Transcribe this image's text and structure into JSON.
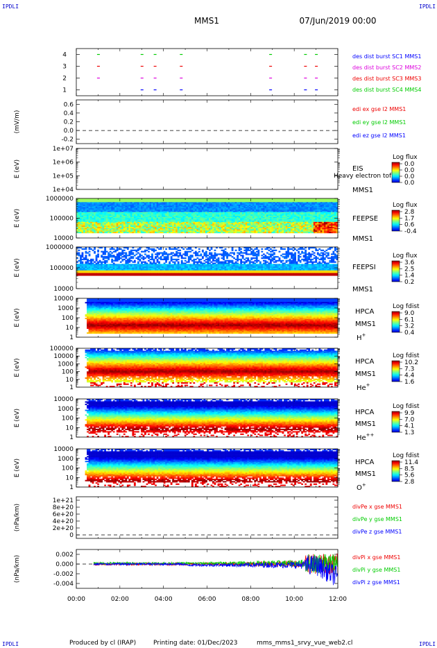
{
  "header": {
    "logo": "IPDLI",
    "spacecraft": "MMS1",
    "datetime": "07/Jun/2019 00:00"
  },
  "footer": {
    "produced_by": "Produced by cl (IRAP)",
    "printing_date": "Printing date: 01/Dec/2023",
    "filename": "mms_mms1_srvy_vue_web2.cl"
  },
  "time_axis": {
    "ticks": [
      "00:00",
      "02:00",
      "04:00",
      "06:00",
      "08:00",
      "10:00",
      "12:00"
    ],
    "range_hours": [
      0,
      12
    ]
  },
  "chart_data": [
    {
      "type": "scatter",
      "id": "burst",
      "ylabel": "",
      "yticks": [
        "1",
        "2",
        "3",
        "4"
      ],
      "ylim": [
        0.5,
        4.5
      ],
      "series": [
        {
          "name": "des dist burst SC1 MMS1",
          "color": "#0000ff",
          "level": 1,
          "times": [
            3.0,
            3.6,
            4.8,
            8.9,
            10.5,
            11.0
          ]
        },
        {
          "name": "des dist burst SC2 MMS2",
          "color": "#dd00dd",
          "level": 2,
          "times": [
            1.0,
            3.0,
            3.6,
            4.8,
            8.9,
            10.5,
            11.0
          ]
        },
        {
          "name": "des dist burst SC3 MMS3",
          "color": "#ee0000",
          "level": 3,
          "times": [
            1.0,
            3.0,
            3.6,
            4.8,
            8.9,
            10.5,
            11.0
          ]
        },
        {
          "name": "des dist burst SC4 MMS4",
          "color": "#00cc00",
          "level": 4,
          "times": [
            1.0,
            3.0,
            3.6,
            4.8,
            8.9,
            10.5,
            11.0
          ]
        }
      ]
    },
    {
      "type": "line",
      "id": "edi",
      "ylabel": "(mV/m)",
      "yticks": [
        "0.6",
        "0.4",
        "0.2",
        "0.0",
        "-0.2"
      ],
      "ytick_values": [
        0.6,
        0.4,
        0.2,
        0.0,
        -0.2
      ],
      "ylim": [
        -0.3,
        0.7
      ],
      "zero_line": true,
      "legend": [
        {
          "name": "edi ex gse l2 MMS1",
          "color": "#ee0000"
        },
        {
          "name": "edi ey gse l2 MMS1",
          "color": "#00cc00"
        },
        {
          "name": "edi ez gse l2 MMS1",
          "color": "#0000ff"
        }
      ]
    },
    {
      "type": "heatmap",
      "id": "eis",
      "ylabel": "E (eV)",
      "yticks": [
        "1e+07",
        "1e+06",
        "1e+05",
        "1e+04"
      ],
      "log_range": [
        4,
        7
      ],
      "label_lines": [
        "EIS",
        "MMS1"
      ],
      "overlay_text": "Heavy electron tof",
      "colorbar_title": "Log flux",
      "colorbar_ticks": [
        "0.0",
        "0.0",
        "0.0",
        "0.0"
      ],
      "data_present": false
    },
    {
      "type": "heatmap",
      "id": "feepse",
      "ylabel": "E (eV)",
      "yticks": [
        "1000000",
        "100000",
        "10000"
      ],
      "log_range": [
        4,
        6
      ],
      "label_lines": [
        "FEEPSE",
        "MMS1"
      ],
      "colorbar_title": "Log flux",
      "colorbar_ticks": [
        "2.8",
        "1.7",
        "0.6",
        "-0.4"
      ],
      "data_present": true
    },
    {
      "type": "heatmap",
      "id": "feepsi",
      "ylabel": "E (eV)",
      "yticks": [
        "1000000",
        "100000",
        "10000"
      ],
      "log_range": [
        4,
        6
      ],
      "label_lines": [
        "FEEPSI",
        "MMS1"
      ],
      "colorbar_title": "Log flux",
      "colorbar_ticks": [
        "3.6",
        "2.5",
        "1.4",
        "0.2"
      ],
      "data_present": true
    },
    {
      "type": "heatmap",
      "id": "hpca_h",
      "ylabel": "E (eV)",
      "yticks": [
        "10000",
        "1000",
        "100",
        "10",
        "1"
      ],
      "log_range": [
        0,
        4.3
      ],
      "label_lines": [
        "HPCA",
        "MMS1"
      ],
      "species": "H",
      "species_sup": "+",
      "colorbar_title": "Log fdist",
      "colorbar_ticks": [
        "9.0",
        "6.1",
        "3.2",
        "0.4"
      ],
      "data_present": true
    },
    {
      "type": "heatmap",
      "id": "hpca_he",
      "ylabel": "E (eV)",
      "yticks": [
        "100000",
        "10000",
        "1000",
        "100",
        "10",
        "1"
      ],
      "log_range": [
        0,
        5
      ],
      "label_lines": [
        "HPCA",
        "MMS1"
      ],
      "species": "He",
      "species_sup": "+",
      "colorbar_title": "Log fdist",
      "colorbar_ticks": [
        "10.2",
        "7.3",
        "4.4",
        "1.6"
      ],
      "data_present": true
    },
    {
      "type": "heatmap",
      "id": "hpca_hepp",
      "ylabel": "E (eV)",
      "yticks": [
        "10000",
        "1000",
        "100",
        "10",
        "1"
      ],
      "log_range": [
        0,
        4.3
      ],
      "label_lines": [
        "HPCA",
        "MMS1"
      ],
      "species": "He",
      "species_sup": "++",
      "colorbar_title": "Log fdist",
      "colorbar_ticks": [
        "9.9",
        "7.0",
        "4.1",
        "1.3"
      ],
      "data_present": true
    },
    {
      "type": "heatmap",
      "id": "hpca_o",
      "ylabel": "E (eV)",
      "yticks": [
        "10000",
        "1000",
        "100",
        "10",
        "1"
      ],
      "log_range": [
        0,
        4.3
      ],
      "label_lines": [
        "HPCA",
        "MMS1"
      ],
      "species": "O",
      "species_sup": "+",
      "colorbar_title": "Log fdist",
      "colorbar_ticks": [
        "11.4",
        "8.5",
        "5.6",
        "2.8"
      ],
      "data_present": true
    },
    {
      "type": "line",
      "id": "divpe",
      "ylabel": "(nPa/km)",
      "yticks": [
        "1e+21",
        "8e+20",
        "6e+20",
        "4e+20",
        "2e+20",
        "0"
      ],
      "ytick_values": [
        1e+21,
        8e+20,
        6e+20,
        4e+20,
        2e+20,
        0
      ],
      "ylim": [
        -1e+20,
        1.1e+21
      ],
      "zero_line": true,
      "legend": [
        {
          "name": "divPe x gse MMS1",
          "color": "#ee0000"
        },
        {
          "name": "divPe y gse MMS1",
          "color": "#00cc00"
        },
        {
          "name": "divPe z gse MMS1",
          "color": "#0000ff"
        }
      ]
    },
    {
      "type": "line",
      "id": "divpi",
      "ylabel": "(nPa/km)",
      "yticks": [
        "0.002",
        "0.000",
        "-0.002",
        "-0.004"
      ],
      "ytick_values": [
        0.002,
        0.0,
        -0.002,
        -0.004
      ],
      "ylim": [
        -0.005,
        0.003
      ],
      "zero_line": true,
      "data_start_hours": 0.8,
      "legend": [
        {
          "name": "divPi x gse MMS1",
          "color": "#ee0000"
        },
        {
          "name": "divPi y gse MMS1",
          "color": "#00cc00"
        },
        {
          "name": "divPi z gse MMS1",
          "color": "#0000ff"
        }
      ]
    }
  ]
}
